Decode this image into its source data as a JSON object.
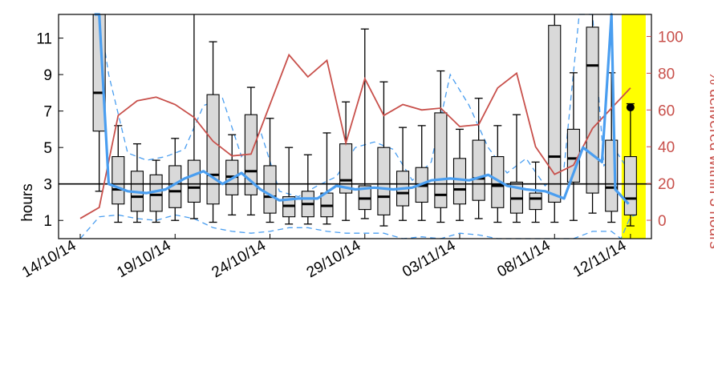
{
  "chart_data": {
    "type": "boxplot",
    "ylabel": "hours",
    "y2label": "% delivered within 3 hours",
    "ylim": [
      0,
      12.3
    ],
    "y2lim": [
      -10,
      112
    ],
    "yticks": [
      1,
      3,
      5,
      7,
      9,
      11
    ],
    "y2ticks": [
      0,
      20,
      40,
      60,
      80,
      100
    ],
    "reference_line_hours": 3,
    "highlight_color": "#ffff00",
    "colors": {
      "box_fill": "#d9d9d9",
      "median_line": "#4a9ef0",
      "quantile_dashed": "#4a9ef0",
      "percent_line": "#c8504b"
    },
    "x_tick_labels": [
      "14/10/14",
      "19/10/14",
      "24/10/14",
      "29/10/14",
      "03/11/14",
      "08/11/14",
      "12/11/14"
    ],
    "x_tick_days": [
      0,
      5,
      10,
      15,
      20,
      25,
      29
    ],
    "days": [
      1,
      2,
      3,
      4,
      5,
      6,
      7,
      8,
      9,
      10,
      11,
      12,
      13,
      14,
      15,
      16,
      17,
      18,
      19,
      20,
      21,
      22,
      23,
      24,
      25,
      26,
      27,
      28,
      29
    ],
    "boxes": [
      [
        2.6,
        5.9,
        8.0,
        12.3,
        12.3
      ],
      [
        0.9,
        1.9,
        2.7,
        4.5,
        6.2
      ],
      [
        0.9,
        1.5,
        2.3,
        3.7,
        5.2
      ],
      [
        0.9,
        1.5,
        2.4,
        3.5,
        4.3
      ],
      [
        1.0,
        1.7,
        2.6,
        4.0,
        5.5
      ],
      [
        1.1,
        2.0,
        2.8,
        4.3,
        12.3
      ],
      [
        0.9,
        1.9,
        3.5,
        7.9,
        10.8
      ],
      [
        1.3,
        2.4,
        3.4,
        4.3,
        5.7
      ],
      [
        1.3,
        2.4,
        3.7,
        6.8,
        8.3
      ],
      [
        0.9,
        1.4,
        2.3,
        4.0,
        6.6
      ],
      [
        0.8,
        1.2,
        1.8,
        2.3,
        5.0
      ],
      [
        0.8,
        1.2,
        1.9,
        2.6,
        4.6
      ],
      [
        0.8,
        1.2,
        1.8,
        2.5,
        5.8
      ],
      [
        1.0,
        2.5,
        3.2,
        5.2,
        7.5
      ],
      [
        1.1,
        1.6,
        2.2,
        2.9,
        11.5
      ],
      [
        0.7,
        1.3,
        2.3,
        5.0,
        8.6
      ],
      [
        1.0,
        1.8,
        2.5,
        3.7,
        6.1
      ],
      [
        1.0,
        2.0,
        2.9,
        3.9,
        6.2
      ],
      [
        0.9,
        1.7,
        2.4,
        6.9,
        9.2
      ],
      [
        1.0,
        1.9,
        2.7,
        4.4,
        6.0
      ],
      [
        1.1,
        2.1,
        3.3,
        5.4,
        7.7
      ],
      [
        0.9,
        1.7,
        2.9,
        4.5,
        6.2
      ],
      [
        0.9,
        1.4,
        2.2,
        3.1,
        6.8
      ],
      [
        0.9,
        1.6,
        2.2,
        2.5,
        4.2
      ],
      [
        0.9,
        2.0,
        4.5,
        11.7,
        12.3
      ],
      [
        1.0,
        3.1,
        4.4,
        6.0,
        9.1
      ],
      [
        1.4,
        2.5,
        9.5,
        11.6,
        12.3
      ],
      [
        0.9,
        1.5,
        2.8,
        5.4,
        9.1
      ],
      [
        0.7,
        1.3,
        2.2,
        4.5,
        7.4
      ]
    ],
    "mean_hours": [
      12.3,
      12.3,
      3.0,
      2.6,
      2.5,
      2.7,
      3.3,
      3.7,
      3.0,
      3.6,
      2.7,
      2.1,
      2.2,
      2.2,
      2.9,
      2.7,
      2.8,
      2.7,
      2.8,
      3.2,
      3.3,
      3.2,
      3.5,
      2.9,
      2.7,
      2.6,
      2.2,
      5.0,
      4.2,
      12.3,
      12.3,
      2.7,
      1.9
    ],
    "mean_days": [
      0.75,
      1,
      1.5,
      2.5,
      3.5,
      4.5,
      5.5,
      6.5,
      7.5,
      8.5,
      9.5,
      10.5,
      11.5,
      12.5,
      13.5,
      14.5,
      15.5,
      16.5,
      17.5,
      18.5,
      19.5,
      20.5,
      21.5,
      22.5,
      23.5,
      24.5,
      25.5,
      26.5,
      27.5,
      28.0,
      28.0,
      28.2,
      28.9
    ],
    "lower_dashed_hours": [
      0.0,
      1.2,
      1.3,
      1.1,
      1.0,
      1.3,
      1.1,
      0.6,
      0.4,
      0.3,
      0.4,
      0.6,
      0.6,
      0.4,
      0.3,
      0.3,
      0.3,
      0.0,
      0.1,
      0.0,
      0.3,
      0.2,
      0.0,
      0.0,
      0.0,
      0.0,
      0.0,
      0.4,
      0.4,
      0.0,
      1.2,
      1.3
    ],
    "lower_dashed_days": [
      0,
      1,
      2,
      3,
      4,
      5,
      6,
      7,
      8,
      9,
      10,
      11,
      12,
      13,
      14,
      15,
      16,
      17,
      18,
      19,
      20,
      21,
      22,
      23,
      24,
      25,
      26,
      27,
      28,
      28.5,
      29,
      29.3
    ],
    "upper_dashed_hours": [
      12.3,
      9.0,
      4.7,
      4.3,
      4.5,
      4.9,
      7.3,
      7.7,
      4.5,
      5.9,
      2.6,
      2.3,
      2.9,
      3.4,
      5.0,
      5.3,
      4.9,
      3.2,
      4.2,
      9.0,
      7.3,
      5.0,
      3.6,
      4.4,
      2.9,
      3.9,
      12.3,
      12.3,
      4.0,
      4.7,
      3.6
    ],
    "upper_dashed_days": [
      1,
      1.5,
      2.5,
      3.5,
      4.5,
      5.5,
      6.5,
      7.5,
      8.5,
      9.5,
      10.5,
      11.5,
      12.5,
      13.5,
      14.5,
      15.5,
      16.5,
      17.5,
      18.5,
      19.5,
      20.5,
      21.5,
      22.5,
      23.5,
      24.5,
      25.5,
      26.3,
      27,
      27.6,
      28.3,
      29
    ],
    "percent_within_3h": [
      1,
      7,
      57,
      65,
      67,
      63,
      56,
      43,
      35,
      36,
      63,
      90,
      78,
      87,
      42,
      77,
      57,
      63,
      60,
      61,
      51,
      52,
      72,
      80,
      40,
      25,
      30,
      50,
      72
    ],
    "percent_days": [
      0,
      1,
      2,
      3,
      4,
      5,
      6,
      7,
      8,
      9,
      10,
      11,
      12,
      13,
      14,
      15,
      16,
      17,
      18,
      19,
      20,
      21,
      22,
      23,
      24,
      25,
      26,
      27,
      29
    ],
    "latest_point": {
      "day": 29,
      "hours": 7.2
    }
  }
}
